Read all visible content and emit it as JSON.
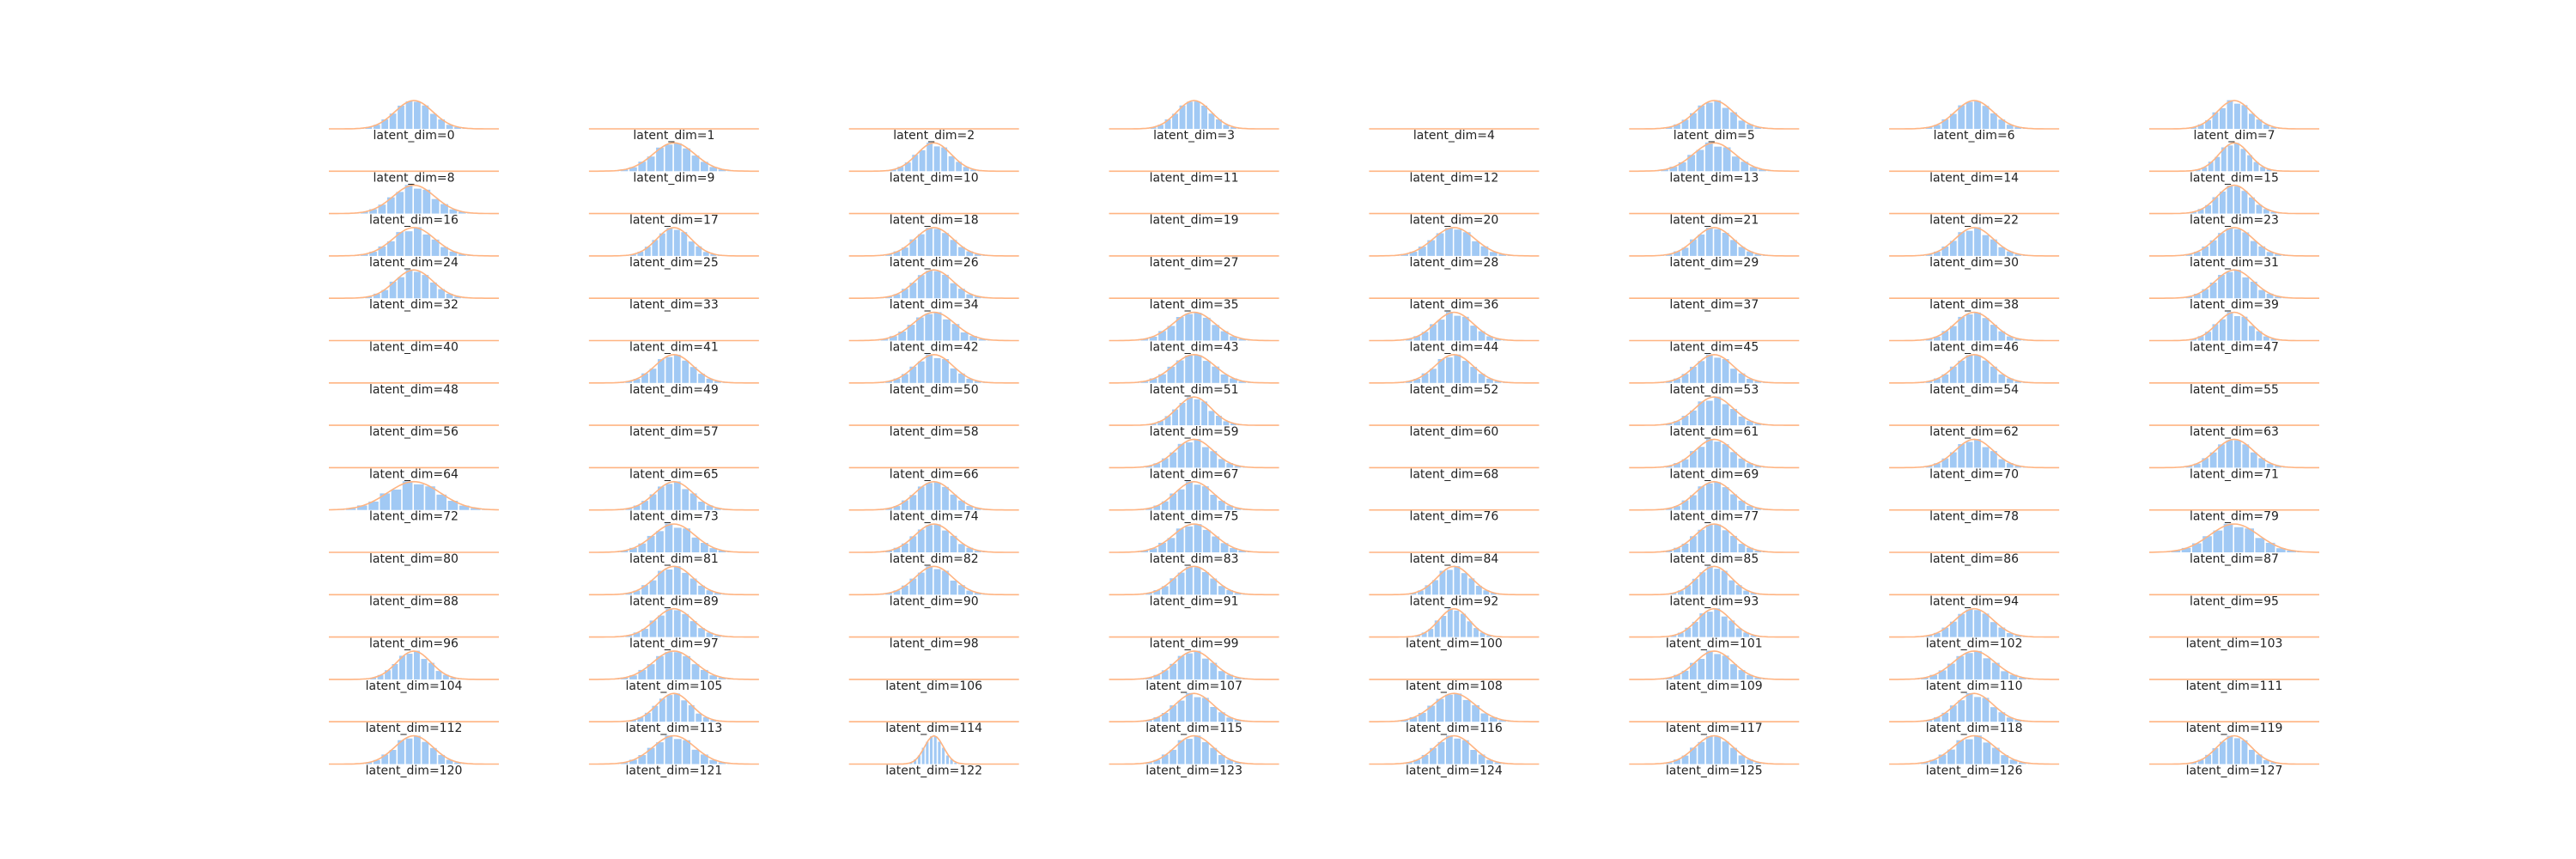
{
  "chart_data": {
    "type": "histogram-grid",
    "layout": {
      "rows": 16,
      "cols": 8
    },
    "label_prefix": "latent_dim=",
    "panels": [
      {
        "dim": 0,
        "label": "latent_dim=0",
        "active": true,
        "width": 1.0
      },
      {
        "dim": 1,
        "label": "latent_dim=1",
        "active": false,
        "width": 1.0
      },
      {
        "dim": 2,
        "label": "latent_dim=2",
        "active": false,
        "width": 1.0
      },
      {
        "dim": 3,
        "label": "latent_dim=3",
        "active": true,
        "width": 0.9
      },
      {
        "dim": 4,
        "label": "latent_dim=4",
        "active": false,
        "width": 1.0
      },
      {
        "dim": 5,
        "label": "latent_dim=5",
        "active": true,
        "width": 1.0
      },
      {
        "dim": 6,
        "label": "latent_dim=6",
        "active": true,
        "width": 1.0
      },
      {
        "dim": 7,
        "label": "latent_dim=7",
        "active": true,
        "width": 0.9
      },
      {
        "dim": 8,
        "label": "latent_dim=8",
        "active": false,
        "width": 1.0
      },
      {
        "dim": 9,
        "label": "latent_dim=9",
        "active": true,
        "width": 1.1
      },
      {
        "dim": 10,
        "label": "latent_dim=10",
        "active": true,
        "width": 0.9
      },
      {
        "dim": 11,
        "label": "latent_dim=11",
        "active": false,
        "width": 1.0
      },
      {
        "dim": 12,
        "label": "latent_dim=12",
        "active": false,
        "width": 1.0
      },
      {
        "dim": 13,
        "label": "latent_dim=13",
        "active": true,
        "width": 1.1
      },
      {
        "dim": 14,
        "label": "latent_dim=14",
        "active": false,
        "width": 1.0
      },
      {
        "dim": 15,
        "label": "latent_dim=15",
        "active": true,
        "width": 0.8
      },
      {
        "dim": 16,
        "label": "latent_dim=16",
        "active": true,
        "width": 1.1
      },
      {
        "dim": 17,
        "label": "latent_dim=17",
        "active": false,
        "width": 1.0
      },
      {
        "dim": 18,
        "label": "latent_dim=18",
        "active": false,
        "width": 1.0
      },
      {
        "dim": 19,
        "label": "latent_dim=19",
        "active": false,
        "width": 1.0
      },
      {
        "dim": 20,
        "label": "latent_dim=20",
        "active": false,
        "width": 1.0
      },
      {
        "dim": 21,
        "label": "latent_dim=21",
        "active": false,
        "width": 1.0
      },
      {
        "dim": 22,
        "label": "latent_dim=22",
        "active": false,
        "width": 1.0
      },
      {
        "dim": 23,
        "label": "latent_dim=23",
        "active": true,
        "width": 0.9
      },
      {
        "dim": 24,
        "label": "latent_dim=24",
        "active": true,
        "width": 1.1
      },
      {
        "dim": 25,
        "label": "latent_dim=25",
        "active": true,
        "width": 0.9
      },
      {
        "dim": 26,
        "label": "latent_dim=26",
        "active": true,
        "width": 1.0
      },
      {
        "dim": 27,
        "label": "latent_dim=27",
        "active": false,
        "width": 1.0
      },
      {
        "dim": 28,
        "label": "latent_dim=28",
        "active": true,
        "width": 1.1
      },
      {
        "dim": 29,
        "label": "latent_dim=29",
        "active": true,
        "width": 1.0
      },
      {
        "dim": 30,
        "label": "latent_dim=30",
        "active": true,
        "width": 1.0
      },
      {
        "dim": 31,
        "label": "latent_dim=31",
        "active": true,
        "width": 1.0
      },
      {
        "dim": 32,
        "label": "latent_dim=32",
        "active": true,
        "width": 1.0
      },
      {
        "dim": 33,
        "label": "latent_dim=33",
        "active": false,
        "width": 1.0
      },
      {
        "dim": 34,
        "label": "latent_dim=34",
        "active": true,
        "width": 1.0
      },
      {
        "dim": 35,
        "label": "latent_dim=35",
        "active": false,
        "width": 1.0
      },
      {
        "dim": 36,
        "label": "latent_dim=36",
        "active": false,
        "width": 1.0
      },
      {
        "dim": 37,
        "label": "latent_dim=37",
        "active": false,
        "width": 1.0
      },
      {
        "dim": 38,
        "label": "latent_dim=38",
        "active": false,
        "width": 1.0
      },
      {
        "dim": 39,
        "label": "latent_dim=39",
        "active": true,
        "width": 1.0
      },
      {
        "dim": 40,
        "label": "latent_dim=40",
        "active": false,
        "width": 1.0
      },
      {
        "dim": 41,
        "label": "latent_dim=41",
        "active": false,
        "width": 1.0
      },
      {
        "dim": 42,
        "label": "latent_dim=42",
        "active": true,
        "width": 1.1
      },
      {
        "dim": 43,
        "label": "latent_dim=43",
        "active": true,
        "width": 1.1
      },
      {
        "dim": 44,
        "label": "latent_dim=44",
        "active": true,
        "width": 1.0
      },
      {
        "dim": 45,
        "label": "latent_dim=45",
        "active": false,
        "width": 1.0
      },
      {
        "dim": 46,
        "label": "latent_dim=46",
        "active": true,
        "width": 1.0
      },
      {
        "dim": 47,
        "label": "latent_dim=47",
        "active": true,
        "width": 0.9
      },
      {
        "dim": 48,
        "label": "latent_dim=48",
        "active": false,
        "width": 1.0
      },
      {
        "dim": 49,
        "label": "latent_dim=49",
        "active": true,
        "width": 1.0
      },
      {
        "dim": 50,
        "label": "latent_dim=50",
        "active": true,
        "width": 1.0
      },
      {
        "dim": 51,
        "label": "latent_dim=51",
        "active": true,
        "width": 1.1
      },
      {
        "dim": 52,
        "label": "latent_dim=52",
        "active": true,
        "width": 1.0
      },
      {
        "dim": 53,
        "label": "latent_dim=53",
        "active": true,
        "width": 1.0
      },
      {
        "dim": 54,
        "label": "latent_dim=54",
        "active": true,
        "width": 1.0
      },
      {
        "dim": 55,
        "label": "latent_dim=55",
        "active": false,
        "width": 1.0
      },
      {
        "dim": 56,
        "label": "latent_dim=56",
        "active": false,
        "width": 1.0
      },
      {
        "dim": 57,
        "label": "latent_dim=57",
        "active": false,
        "width": 1.0
      },
      {
        "dim": 58,
        "label": "latent_dim=58",
        "active": false,
        "width": 1.0
      },
      {
        "dim": 59,
        "label": "latent_dim=59",
        "active": true,
        "width": 0.9
      },
      {
        "dim": 60,
        "label": "latent_dim=60",
        "active": false,
        "width": 1.0
      },
      {
        "dim": 61,
        "label": "latent_dim=61",
        "active": true,
        "width": 1.0
      },
      {
        "dim": 62,
        "label": "latent_dim=62",
        "active": false,
        "width": 1.0
      },
      {
        "dim": 63,
        "label": "latent_dim=63",
        "active": false,
        "width": 1.0
      },
      {
        "dim": 64,
        "label": "latent_dim=64",
        "active": false,
        "width": 1.0
      },
      {
        "dim": 65,
        "label": "latent_dim=65",
        "active": false,
        "width": 1.0
      },
      {
        "dim": 66,
        "label": "latent_dim=66",
        "active": false,
        "width": 1.0
      },
      {
        "dim": 67,
        "label": "latent_dim=67",
        "active": true,
        "width": 1.0
      },
      {
        "dim": 68,
        "label": "latent_dim=68",
        "active": false,
        "width": 1.0
      },
      {
        "dim": 69,
        "label": "latent_dim=69",
        "active": true,
        "width": 1.0
      },
      {
        "dim": 70,
        "label": "latent_dim=70",
        "active": true,
        "width": 1.0
      },
      {
        "dim": 71,
        "label": "latent_dim=71",
        "active": true,
        "width": 1.0
      },
      {
        "dim": 72,
        "label": "latent_dim=72",
        "active": true,
        "width": 1.4
      },
      {
        "dim": 73,
        "label": "latent_dim=73",
        "active": true,
        "width": 1.0
      },
      {
        "dim": 74,
        "label": "latent_dim=74",
        "active": true,
        "width": 1.0
      },
      {
        "dim": 75,
        "label": "latent_dim=75",
        "active": true,
        "width": 1.0
      },
      {
        "dim": 76,
        "label": "latent_dim=76",
        "active": false,
        "width": 1.0
      },
      {
        "dim": 77,
        "label": "latent_dim=77",
        "active": true,
        "width": 1.0
      },
      {
        "dim": 78,
        "label": "latent_dim=78",
        "active": false,
        "width": 1.0
      },
      {
        "dim": 79,
        "label": "latent_dim=79",
        "active": false,
        "width": 1.0
      },
      {
        "dim": 80,
        "label": "latent_dim=80",
        "active": false,
        "width": 1.0
      },
      {
        "dim": 81,
        "label": "latent_dim=81",
        "active": true,
        "width": 1.1
      },
      {
        "dim": 82,
        "label": "latent_dim=82",
        "active": true,
        "width": 1.0
      },
      {
        "dim": 83,
        "label": "latent_dim=83",
        "active": true,
        "width": 1.1
      },
      {
        "dim": 84,
        "label": "latent_dim=84",
        "active": false,
        "width": 1.0
      },
      {
        "dim": 85,
        "label": "latent_dim=85",
        "active": true,
        "width": 1.0
      },
      {
        "dim": 86,
        "label": "latent_dim=86",
        "active": false,
        "width": 1.0
      },
      {
        "dim": 87,
        "label": "latent_dim=87",
        "active": true,
        "width": 1.3
      },
      {
        "dim": 88,
        "label": "latent_dim=88",
        "active": false,
        "width": 1.0
      },
      {
        "dim": 89,
        "label": "latent_dim=89",
        "active": true,
        "width": 1.0
      },
      {
        "dim": 90,
        "label": "latent_dim=90",
        "active": true,
        "width": 1.0
      },
      {
        "dim": 91,
        "label": "latent_dim=91",
        "active": true,
        "width": 1.0
      },
      {
        "dim": 92,
        "label": "latent_dim=92",
        "active": true,
        "width": 0.9
      },
      {
        "dim": 93,
        "label": "latent_dim=93",
        "active": true,
        "width": 0.9
      },
      {
        "dim": 94,
        "label": "latent_dim=94",
        "active": false,
        "width": 1.0
      },
      {
        "dim": 95,
        "label": "latent_dim=95",
        "active": false,
        "width": 1.0
      },
      {
        "dim": 96,
        "label": "latent_dim=96",
        "active": false,
        "width": 1.0
      },
      {
        "dim": 97,
        "label": "latent_dim=97",
        "active": true,
        "width": 1.0
      },
      {
        "dim": 98,
        "label": "latent_dim=98",
        "active": false,
        "width": 1.0
      },
      {
        "dim": 99,
        "label": "latent_dim=99",
        "active": false,
        "width": 1.0
      },
      {
        "dim": 100,
        "label": "latent_dim=100",
        "active": true,
        "width": 0.8
      },
      {
        "dim": 101,
        "label": "latent_dim=101",
        "active": true,
        "width": 0.9
      },
      {
        "dim": 102,
        "label": "latent_dim=102",
        "active": true,
        "width": 1.0
      },
      {
        "dim": 103,
        "label": "latent_dim=103",
        "active": false,
        "width": 1.0
      },
      {
        "dim": 104,
        "label": "latent_dim=104",
        "active": true,
        "width": 0.9
      },
      {
        "dim": 105,
        "label": "latent_dim=105",
        "active": true,
        "width": 1.1
      },
      {
        "dim": 106,
        "label": "latent_dim=106",
        "active": false,
        "width": 1.0
      },
      {
        "dim": 107,
        "label": "latent_dim=107",
        "active": true,
        "width": 1.0
      },
      {
        "dim": 108,
        "label": "latent_dim=108",
        "active": false,
        "width": 1.0
      },
      {
        "dim": 109,
        "label": "latent_dim=109",
        "active": true,
        "width": 1.0
      },
      {
        "dim": 110,
        "label": "latent_dim=110",
        "active": true,
        "width": 1.1
      },
      {
        "dim": 111,
        "label": "latent_dim=111",
        "active": false,
        "width": 1.0
      },
      {
        "dim": 112,
        "label": "latent_dim=112",
        "active": false,
        "width": 1.0
      },
      {
        "dim": 113,
        "label": "latent_dim=113",
        "active": true,
        "width": 0.9
      },
      {
        "dim": 114,
        "label": "latent_dim=114",
        "active": false,
        "width": 1.0
      },
      {
        "dim": 115,
        "label": "latent_dim=115",
        "active": true,
        "width": 1.0
      },
      {
        "dim": 116,
        "label": "latent_dim=116",
        "active": true,
        "width": 1.1
      },
      {
        "dim": 117,
        "label": "latent_dim=117",
        "active": false,
        "width": 1.0
      },
      {
        "dim": 118,
        "label": "latent_dim=118",
        "active": true,
        "width": 1.0
      },
      {
        "dim": 119,
        "label": "latent_dim=119",
        "active": false,
        "width": 1.0
      },
      {
        "dim": 120,
        "label": "latent_dim=120",
        "active": true,
        "width": 1.0
      },
      {
        "dim": 121,
        "label": "latent_dim=121",
        "active": true,
        "width": 1.1
      },
      {
        "dim": 122,
        "label": "latent_dim=122",
        "active": true,
        "width": 0.5
      },
      {
        "dim": 123,
        "label": "latent_dim=123",
        "active": true,
        "width": 1.0
      },
      {
        "dim": 124,
        "label": "latent_dim=124",
        "active": true,
        "width": 1.0
      },
      {
        "dim": 125,
        "label": "latent_dim=125",
        "active": true,
        "width": 1.0
      },
      {
        "dim": 126,
        "label": "latent_dim=126",
        "active": true,
        "width": 1.1
      },
      {
        "dim": 127,
        "label": "latent_dim=127",
        "active": true,
        "width": 0.9
      }
    ],
    "bar_color": "#a1c9f4",
    "curve_color": "#ffb482",
    "grid": false,
    "axes": false
  }
}
